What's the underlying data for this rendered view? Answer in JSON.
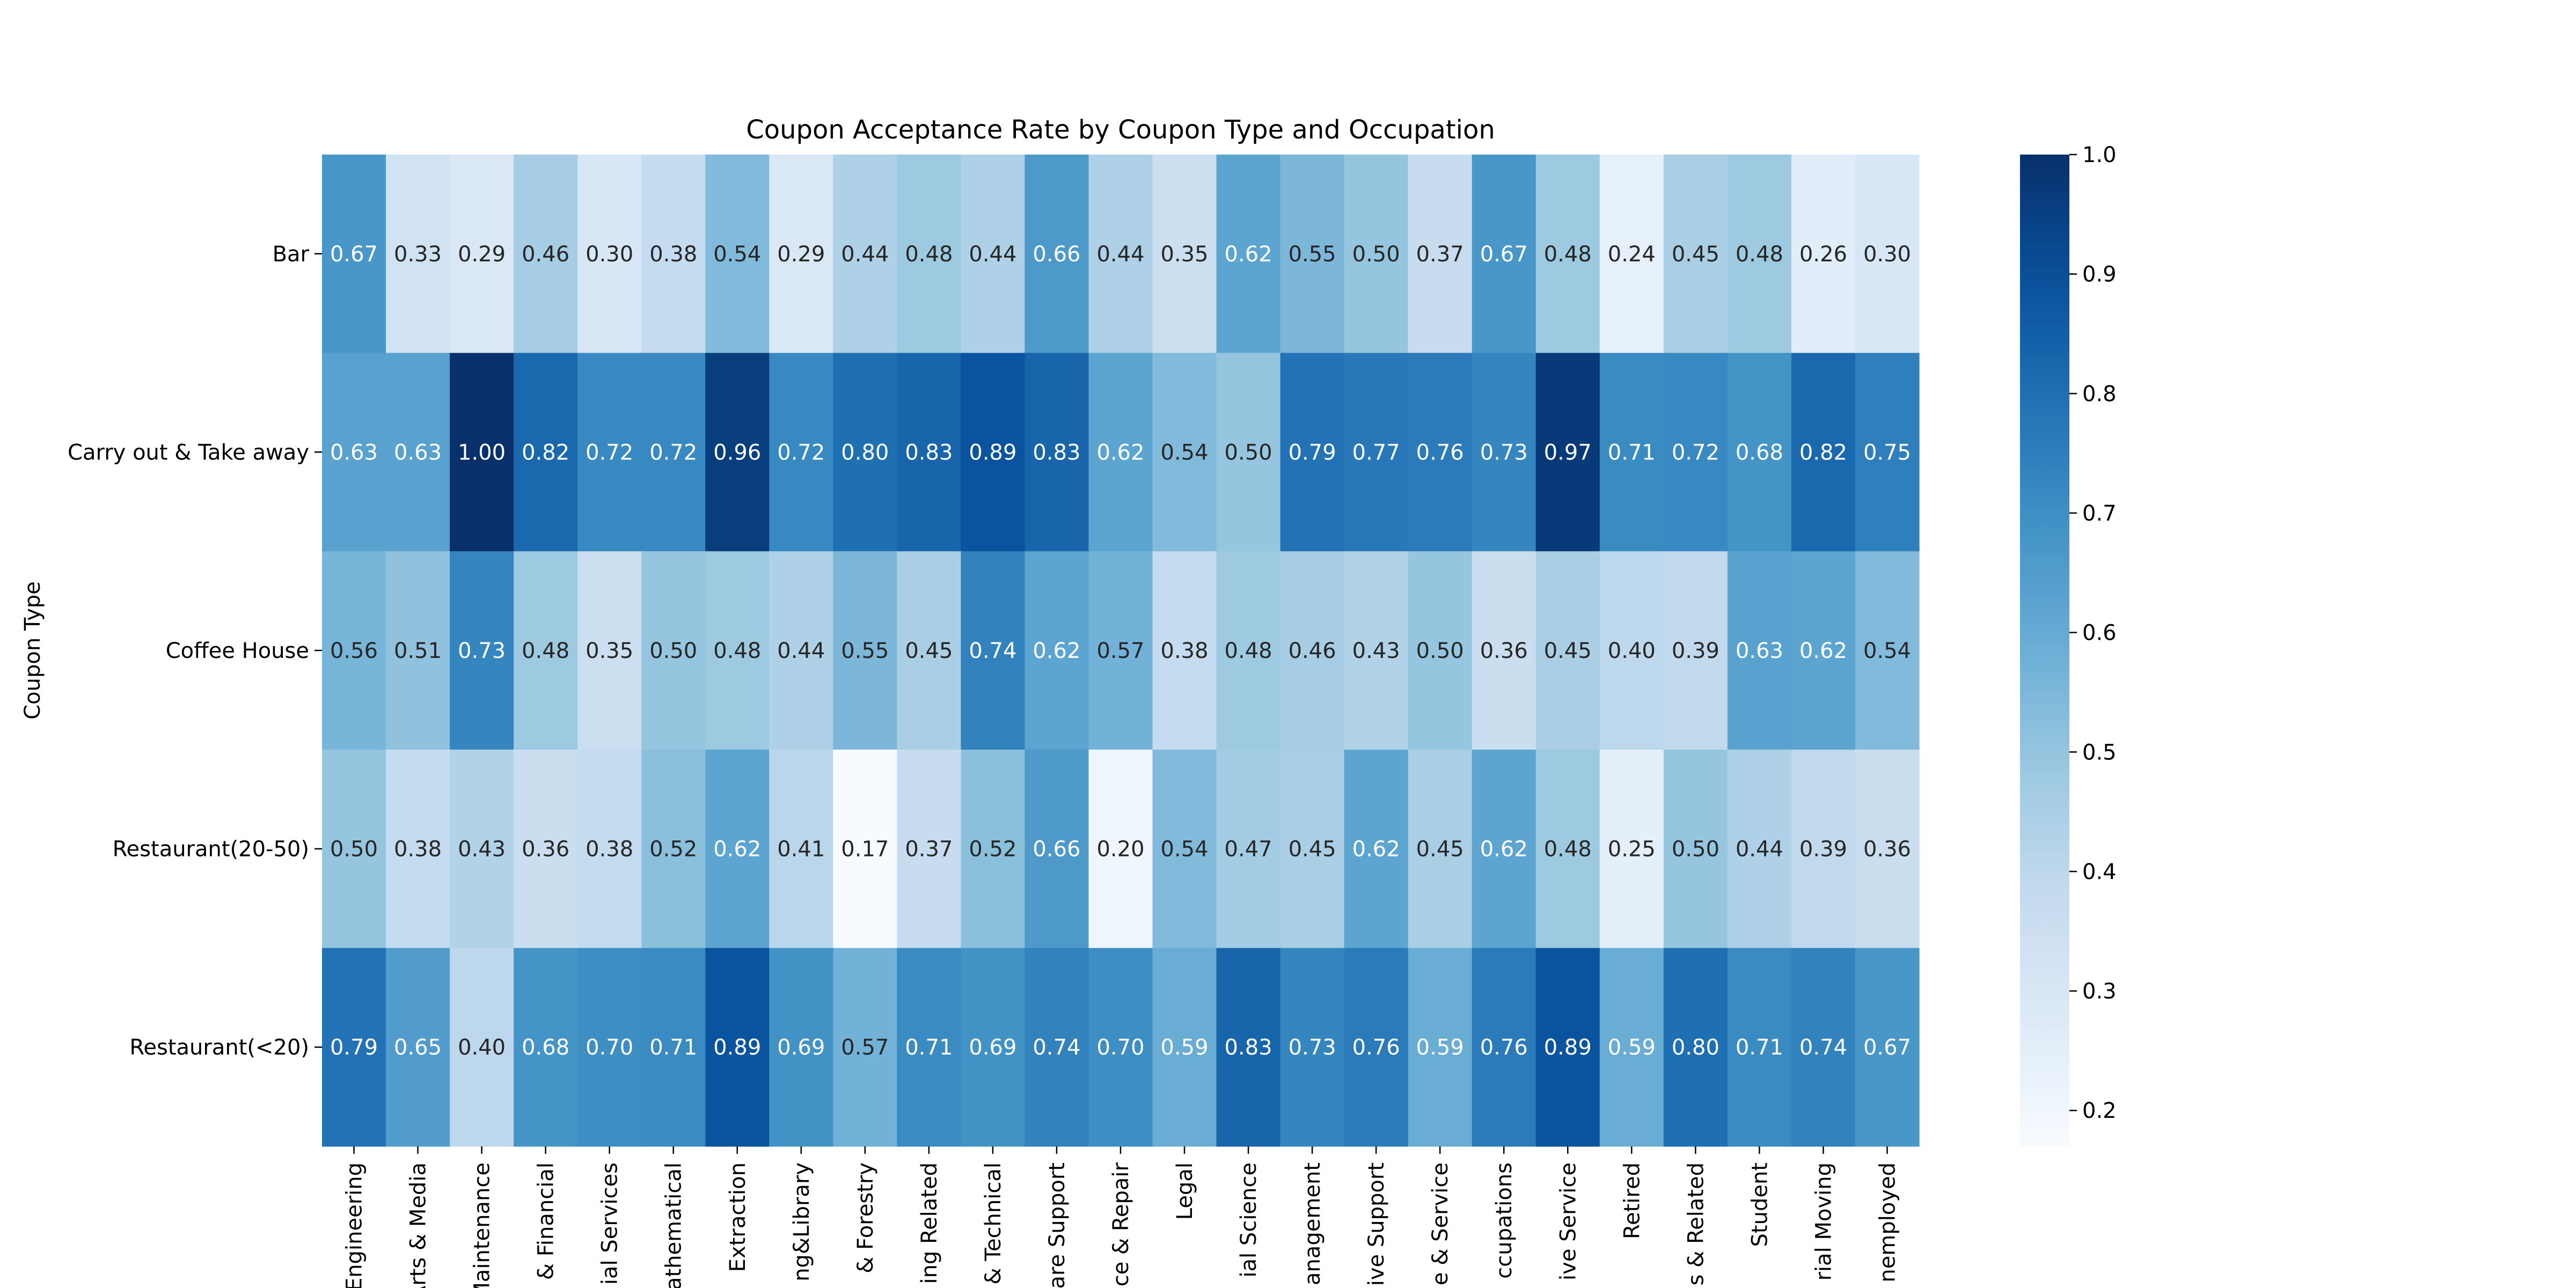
{
  "chart_data": {
    "type": "heatmap",
    "title": "Coupon Acceptance Rate by Coupon Type and Occupation",
    "ylabel": "Coupon Type",
    "xlabel": "",
    "rows": [
      "Bar",
      "Carry out & Take away",
      "Coffee House",
      "Restaurant(20-50)",
      "Restaurant(<20)"
    ],
    "columns": [
      "Engineering",
      "Arts & Media",
      "Maintenance",
      "& Financial",
      "ial Services",
      "athematical",
      "Extraction",
      "ng&Library",
      "& Forestry",
      "ing Related",
      "& Technical",
      "are Support",
      "ce & Repair",
      "Legal",
      "ial Science",
      "anagement",
      "ive Support",
      "e & Service",
      "ccupations",
      "ive Service",
      "Retired",
      "s & Related",
      "Student",
      "rial Moving",
      "nemployed"
    ],
    "values": [
      [
        0.67,
        0.33,
        0.29,
        0.46,
        0.3,
        0.38,
        0.54,
        0.29,
        0.44,
        0.48,
        0.44,
        0.66,
        0.44,
        0.35,
        0.62,
        0.55,
        0.5,
        0.37,
        0.67,
        0.48,
        0.24,
        0.45,
        0.48,
        0.26,
        0.3
      ],
      [
        0.63,
        0.63,
        1.0,
        0.82,
        0.72,
        0.72,
        0.96,
        0.72,
        0.8,
        0.83,
        0.89,
        0.83,
        0.62,
        0.54,
        0.5,
        0.79,
        0.77,
        0.76,
        0.73,
        0.97,
        0.71,
        0.72,
        0.68,
        0.82,
        0.75
      ],
      [
        0.56,
        0.51,
        0.73,
        0.48,
        0.35,
        0.5,
        0.48,
        0.44,
        0.55,
        0.45,
        0.74,
        0.62,
        0.57,
        0.38,
        0.48,
        0.46,
        0.43,
        0.5,
        0.36,
        0.45,
        0.4,
        0.39,
        0.63,
        0.62,
        0.54
      ],
      [
        0.5,
        0.38,
        0.43,
        0.36,
        0.38,
        0.52,
        0.62,
        0.41,
        0.17,
        0.37,
        0.52,
        0.66,
        0.2,
        0.54,
        0.47,
        0.45,
        0.62,
        0.45,
        0.62,
        0.48,
        0.25,
        0.5,
        0.44,
        0.39,
        0.36
      ],
      [
        0.79,
        0.65,
        0.4,
        0.68,
        0.7,
        0.71,
        0.89,
        0.69,
        0.57,
        0.71,
        0.69,
        0.74,
        0.7,
        0.59,
        0.83,
        0.73,
        0.76,
        0.59,
        0.76,
        0.89,
        0.59,
        0.8,
        0.71,
        0.74,
        0.67
      ]
    ],
    "value_format": "0.00",
    "colormap": "Blues",
    "colorbar": {
      "range": [
        0.17,
        1.0
      ],
      "ticks": [
        "0.2",
        "0.3",
        "0.4",
        "0.5",
        "0.6",
        "0.7",
        "0.8",
        "0.9",
        "1.0"
      ]
    },
    "text_colors": {
      "dark": "#262626",
      "light": "#ffffff"
    }
  }
}
